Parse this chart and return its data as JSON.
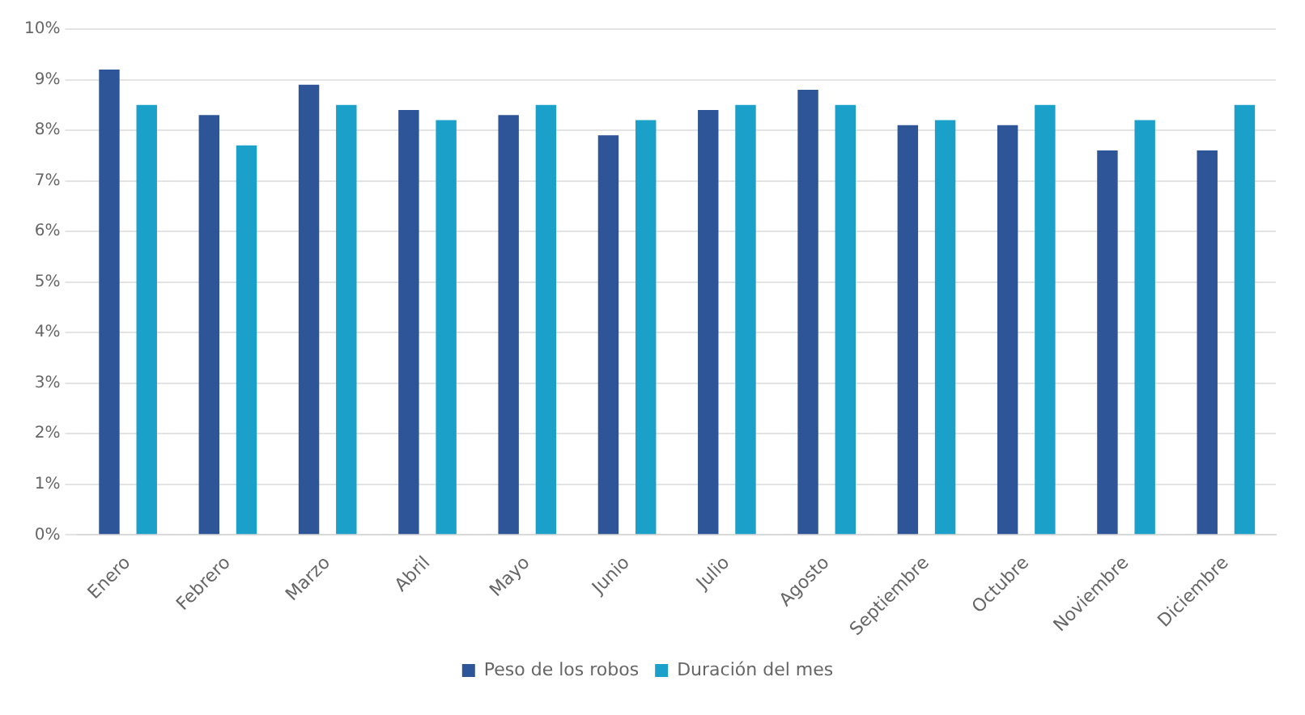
{
  "chart_data": {
    "type": "bar",
    "categories": [
      "Enero",
      "Febrero",
      "Marzo",
      "Abril",
      "Mayo",
      "Junio",
      "Julio",
      "Agosto",
      "Septiembre",
      "Octubre",
      "Noviembre",
      "Diciembre"
    ],
    "series": [
      {
        "name": "Peso de los robos",
        "color": "#2e5597",
        "values": [
          9.2,
          8.3,
          8.9,
          8.4,
          8.3,
          7.9,
          8.4,
          8.8,
          8.1,
          8.1,
          7.6,
          7.6
        ]
      },
      {
        "name": "Duración del mes",
        "color": "#1ba1c9",
        "values": [
          8.5,
          7.7,
          8.5,
          8.2,
          8.5,
          8.2,
          8.5,
          8.5,
          8.2,
          8.5,
          8.2,
          8.5
        ]
      }
    ],
    "ylim": [
      0,
      10
    ],
    "yticks": [
      {
        "value": 0,
        "label": "0%"
      },
      {
        "value": 1,
        "label": "1%"
      },
      {
        "value": 2,
        "label": "2%"
      },
      {
        "value": 3,
        "label": "3%"
      },
      {
        "value": 4,
        "label": "4%"
      },
      {
        "value": 5,
        "label": "5%"
      },
      {
        "value": 6,
        "label": "6%"
      },
      {
        "value": 7,
        "label": "7%"
      },
      {
        "value": 8,
        "label": "8%"
      },
      {
        "value": 9,
        "label": "9%"
      },
      {
        "value": 10,
        "label": "10%"
      }
    ],
    "grid": "y",
    "legend": "bottom"
  }
}
